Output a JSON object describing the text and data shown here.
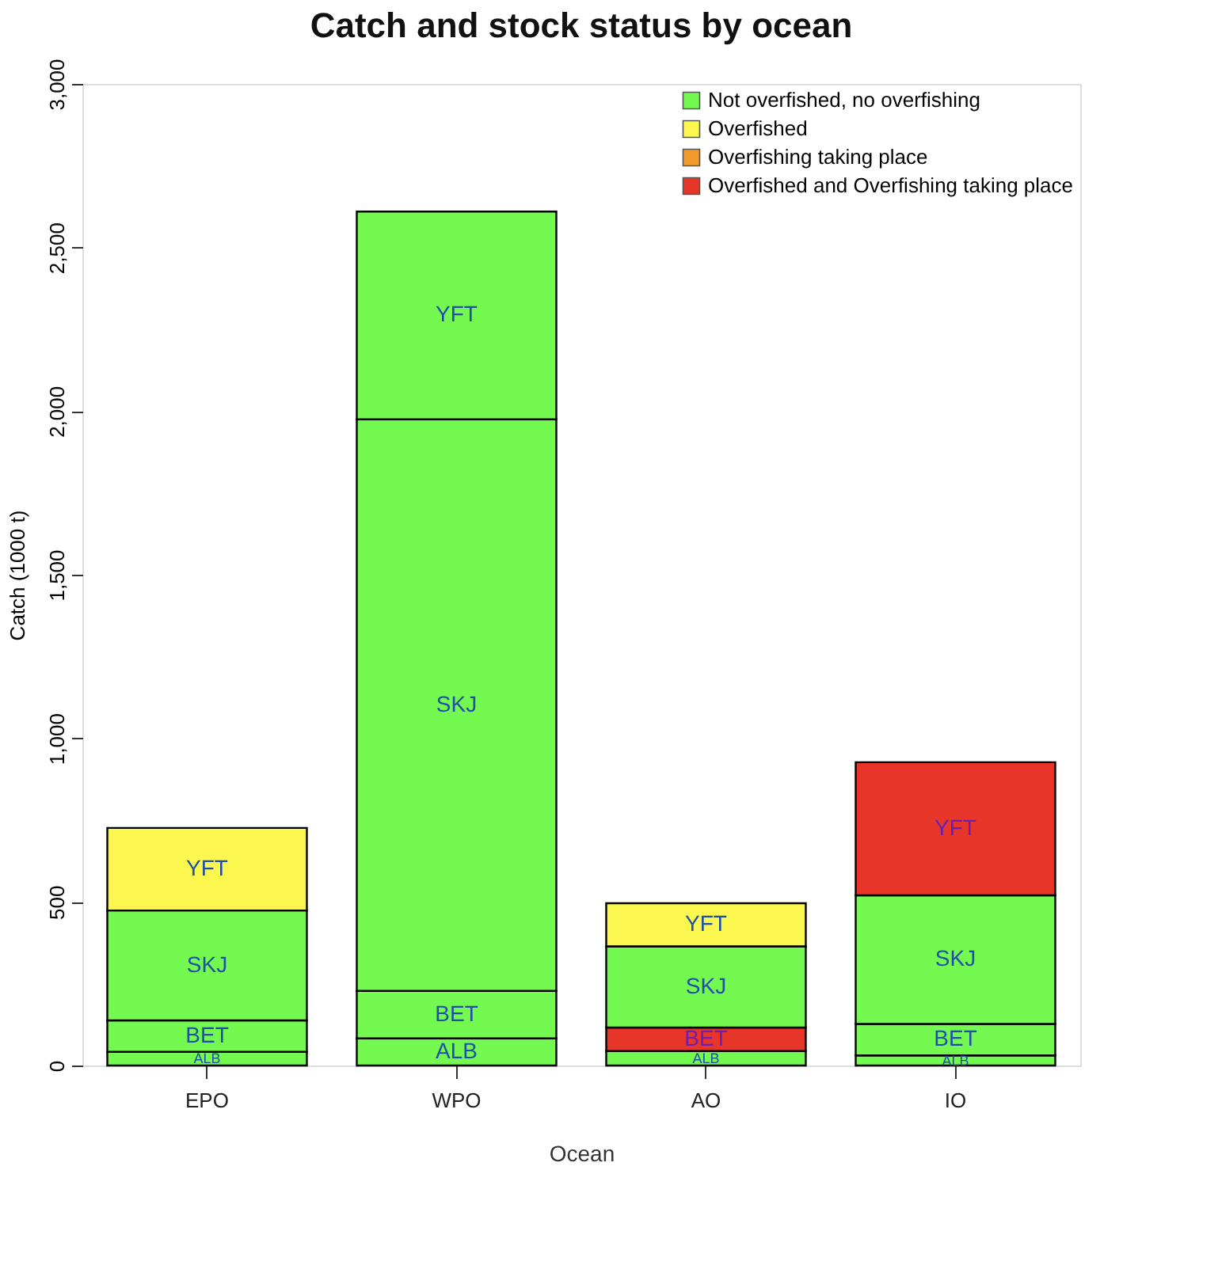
{
  "chart_data": {
    "type": "bar",
    "title": "Catch and stock status by ocean",
    "xlabel": "Ocean",
    "ylabel": "Catch (1000 t)",
    "categories": [
      "EPO",
      "WPO",
      "AO",
      "IO"
    ],
    "stacked": true,
    "series": [
      {
        "name": "ALB",
        "values": [
          42,
          83,
          44,
          31
        ],
        "colors": [
          "#73f94f",
          "#73f94f",
          "#73f94f",
          "#73f94f"
        ]
      },
      {
        "name": "BET",
        "values": [
          96,
          145,
          72,
          96
        ],
        "colors": [
          "#73f94f",
          "#73f94f",
          "#e8352a",
          "#73f94f"
        ]
      },
      {
        "name": "SKJ",
        "values": [
          336,
          1747,
          248,
          393
        ],
        "colors": [
          "#73f94f",
          "#73f94f",
          "#73f94f",
          "#73f94f"
        ]
      },
      {
        "name": "YFT",
        "values": [
          252,
          635,
          132,
          407
        ],
        "colors": [
          "#fbf74f",
          "#73f94f",
          "#fbf74f",
          "#e8352a"
        ]
      },
      {
        "name": "Not overfished, no overfishing",
        "color": "#73f94f",
        "values": [
          null,
          null,
          null,
          null
        ]
      },
      {
        "name": "Overfished",
        "color": "#fbf74f",
        "values": [
          null,
          null,
          null,
          null
        ]
      },
      {
        "name": "Overfishing taking place",
        "color": "#f39a2d",
        "values": [
          null,
          null,
          null,
          null
        ]
      },
      {
        "name": "Overfished and Overfishing taking place",
        "color": "#e8352a",
        "values": [
          null,
          null,
          null,
          null
        ]
      }
    ],
    "legend": "top right",
    "grid": false,
    "ylim": [
      0,
      3000
    ],
    "yticks": [
      {
        "value": 0,
        "label": "0"
      },
      {
        "value": 500,
        "label": "500"
      },
      {
        "value": 1000,
        "label": "1,000"
      },
      {
        "value": 1500,
        "label": "1,500"
      },
      {
        "value": 2000,
        "label": "2,000"
      },
      {
        "value": 2500,
        "label": "2,500"
      },
      {
        "value": 3000,
        "label": "3,000"
      }
    ]
  }
}
